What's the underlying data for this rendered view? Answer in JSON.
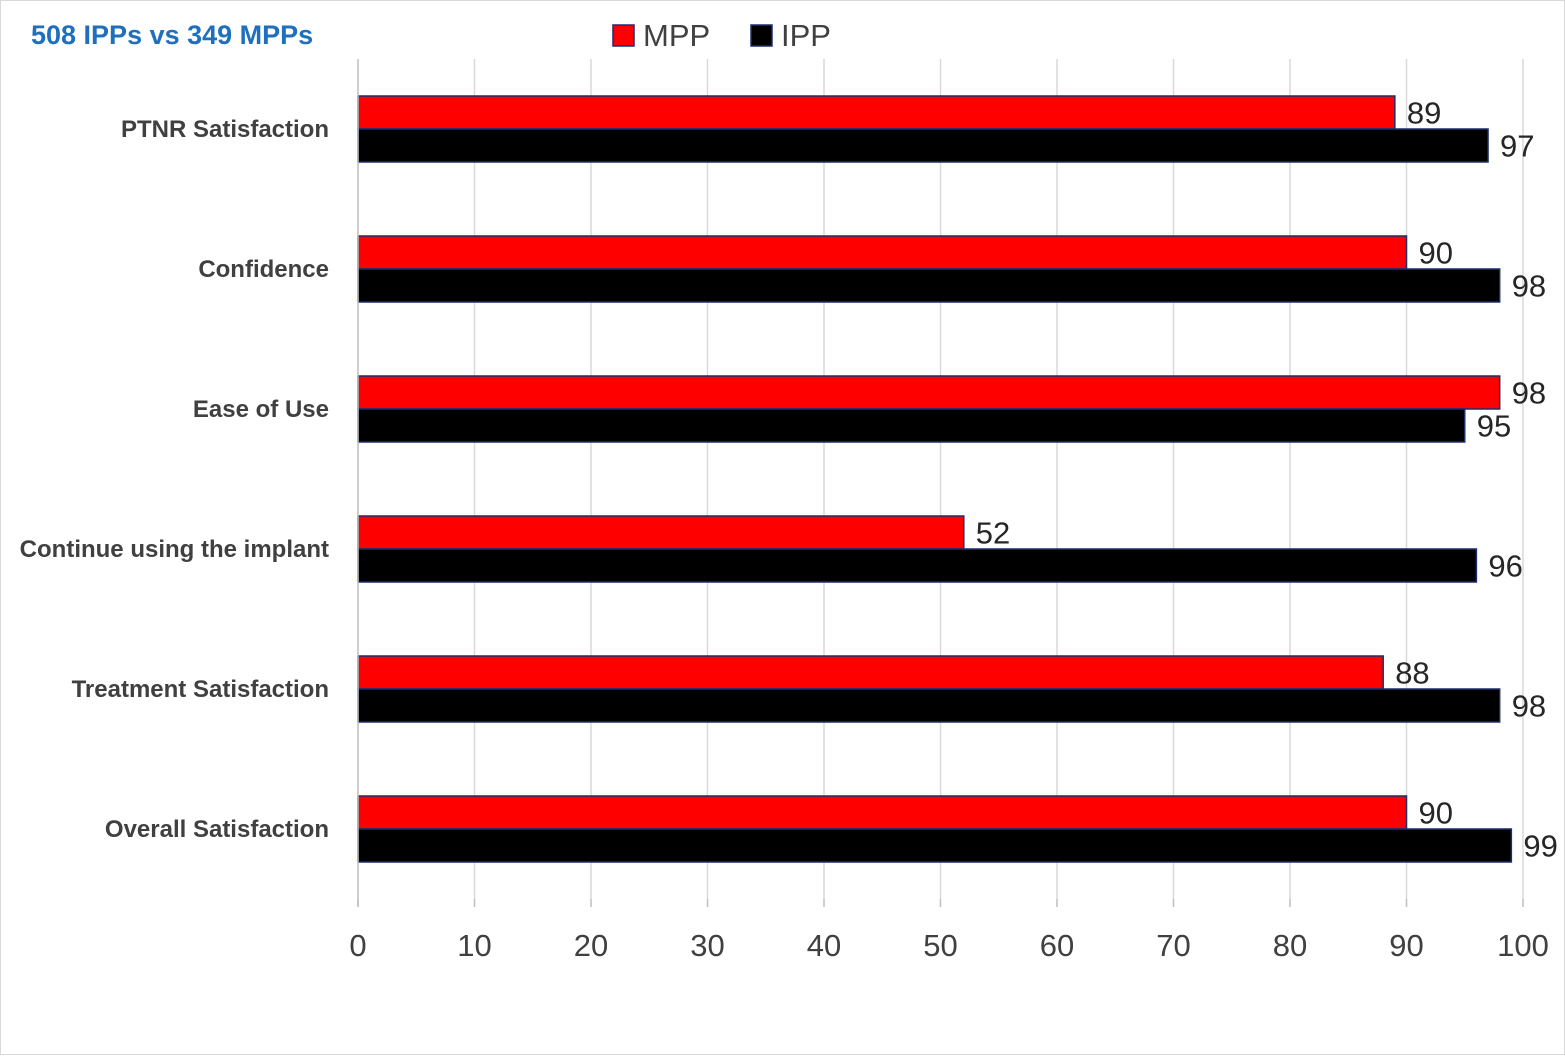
{
  "chart_data": {
    "type": "bar",
    "orientation": "horizontal",
    "title": "508 IPPs vs 349 MPPs",
    "categories": [
      "PTNR Satisfaction",
      "Confidence",
      "Ease of Use",
      "Continue using the implant",
      "Treatment Satisfaction",
      "Overall Satisfaction"
    ],
    "series": [
      {
        "name": "MPP",
        "color": "#ff0000",
        "values": [
          89,
          90,
          98,
          52,
          88,
          90
        ]
      },
      {
        "name": "IPP",
        "color": "#000000",
        "values": [
          97,
          98,
          95,
          96,
          98,
          99
        ]
      }
    ],
    "xlim": [
      0,
      100
    ],
    "xticks": [
      0,
      10,
      20,
      30,
      40,
      50,
      60,
      70,
      80,
      90,
      100
    ],
    "grid": true,
    "legend": "top-center"
  }
}
